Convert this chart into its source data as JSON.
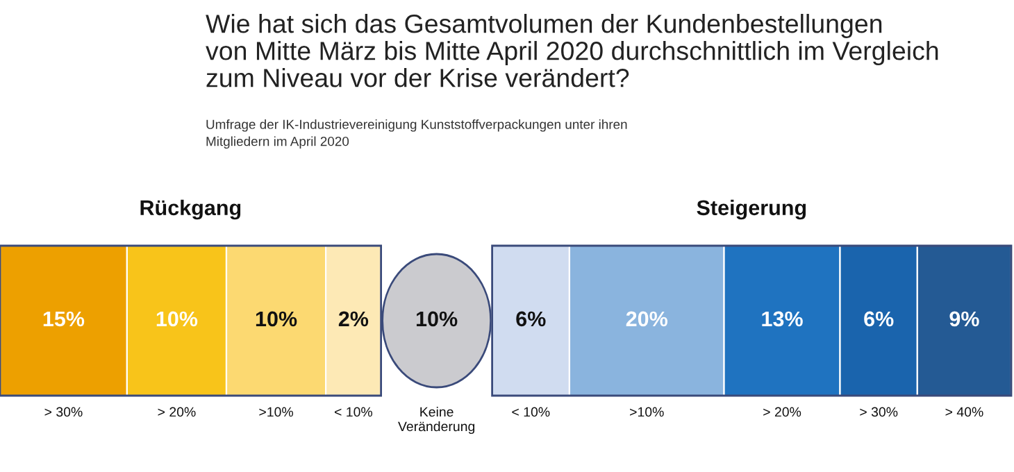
{
  "chart_data": {
    "type": "other",
    "title": "Wie hat sich das Gesamtvolumen der Kundenbestellungen\nvon Mitte März bis Mitte April 2020 durchschnittlich im Vergleich\nzum Niveau vor der Krise verändert?",
    "subtitle": "Umfrage der IK-Industrievereinigung Kunststoffverpackungen unter ihren\nMitgliedern im April 2020",
    "annotations": [
      "Rückgang",
      "Steigerung"
    ],
    "categories": [
      "> 30%",
      "> 20%",
      ">10%",
      "< 10%",
      "Keine\nVeränderung",
      "< 10%",
      ">10%",
      "> 20%",
      "> 30%",
      "> 40%"
    ],
    "series": [
      {
        "type": "bar",
        "values": [
          15,
          10,
          10,
          2,
          null,
          null,
          null,
          null,
          null,
          null
        ],
        "colors": [
          "#eda000",
          "#f8c41a",
          "#fcd971",
          "#fde9b5",
          null,
          null,
          null,
          null,
          null,
          null
        ],
        "value_labels": [
          "15%",
          "10%",
          "10%",
          "2%",
          null,
          null,
          null,
          null,
          null,
          null
        ]
      },
      {
        "type": "scatter",
        "values": [
          null,
          null,
          null,
          null,
          10,
          null,
          null,
          null,
          null,
          null
        ],
        "colors": [
          null,
          null,
          null,
          null,
          "#cbcbcf",
          null,
          null,
          null,
          null,
          null
        ],
        "value_labels": [
          null,
          null,
          null,
          null,
          "10%",
          null,
          null,
          null,
          null,
          null
        ]
      },
      {
        "type": "bar",
        "values": [
          null,
          null,
          null,
          null,
          null,
          6,
          20,
          13,
          6,
          9
        ],
        "colors": [
          null,
          null,
          null,
          null,
          null,
          "#d0dcf0",
          "#8ab4de",
          "#1f73c0",
          "#1a64ad",
          "#245a94"
        ],
        "value_labels": [
          null,
          null,
          null,
          null,
          null,
          "6%",
          "20%",
          "13%",
          "6%",
          "9%"
        ]
      }
    ]
  }
}
